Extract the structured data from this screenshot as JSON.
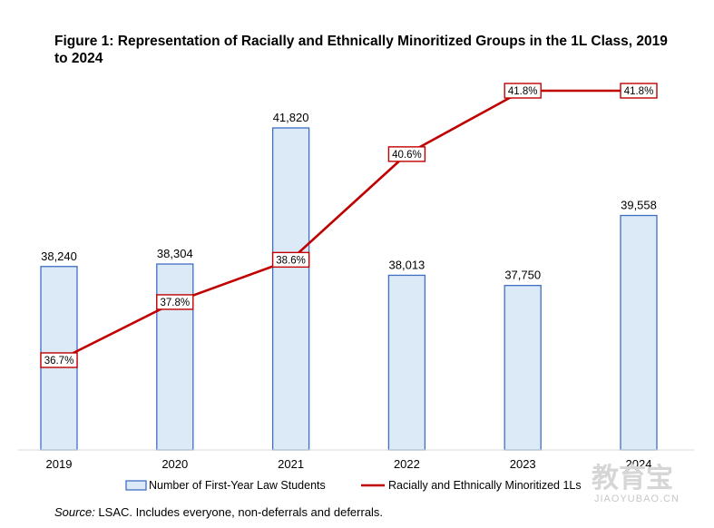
{
  "chart_data": {
    "type": "bar",
    "title": "Figure 1: Representation of Racially and Ethnically Minoritized Groups in the 1L Class, 2019 to 2024",
    "categories": [
      "2019",
      "2020",
      "2021",
      "2022",
      "2023",
      "2024"
    ],
    "series": [
      {
        "name": "Number of First-Year Law Students",
        "type": "bar",
        "values": [
          38240,
          38304,
          41820,
          38013,
          37750,
          39558
        ],
        "labels": [
          "38,240",
          "38,304",
          "41,820",
          "38,013",
          "37,750",
          "39,558"
        ],
        "color": "#dce9f7",
        "border_color": "#3f6fc4"
      },
      {
        "name": "Racially and Ethnically Minoritized 1Ls",
        "type": "line",
        "values": [
          36.7,
          37.8,
          38.6,
          40.6,
          41.8,
          41.8
        ],
        "labels": [
          "36.7%",
          "37.8%",
          "38.6%",
          "40.6%",
          "41.8%",
          "41.8%"
        ],
        "color": "#c00000"
      }
    ],
    "bar_axis_range": [
      33500,
      42500
    ],
    "line_axis_range": [
      34.0,
      42.8
    ],
    "grid": false,
    "legend_position": "bottom"
  },
  "source": {
    "label": "Source:",
    "text": " LSAC. Includes everyone, non-deferrals and deferrals."
  },
  "watermark": {
    "main": "教育宝",
    "sub": "JIAOYUBAO.CN"
  }
}
